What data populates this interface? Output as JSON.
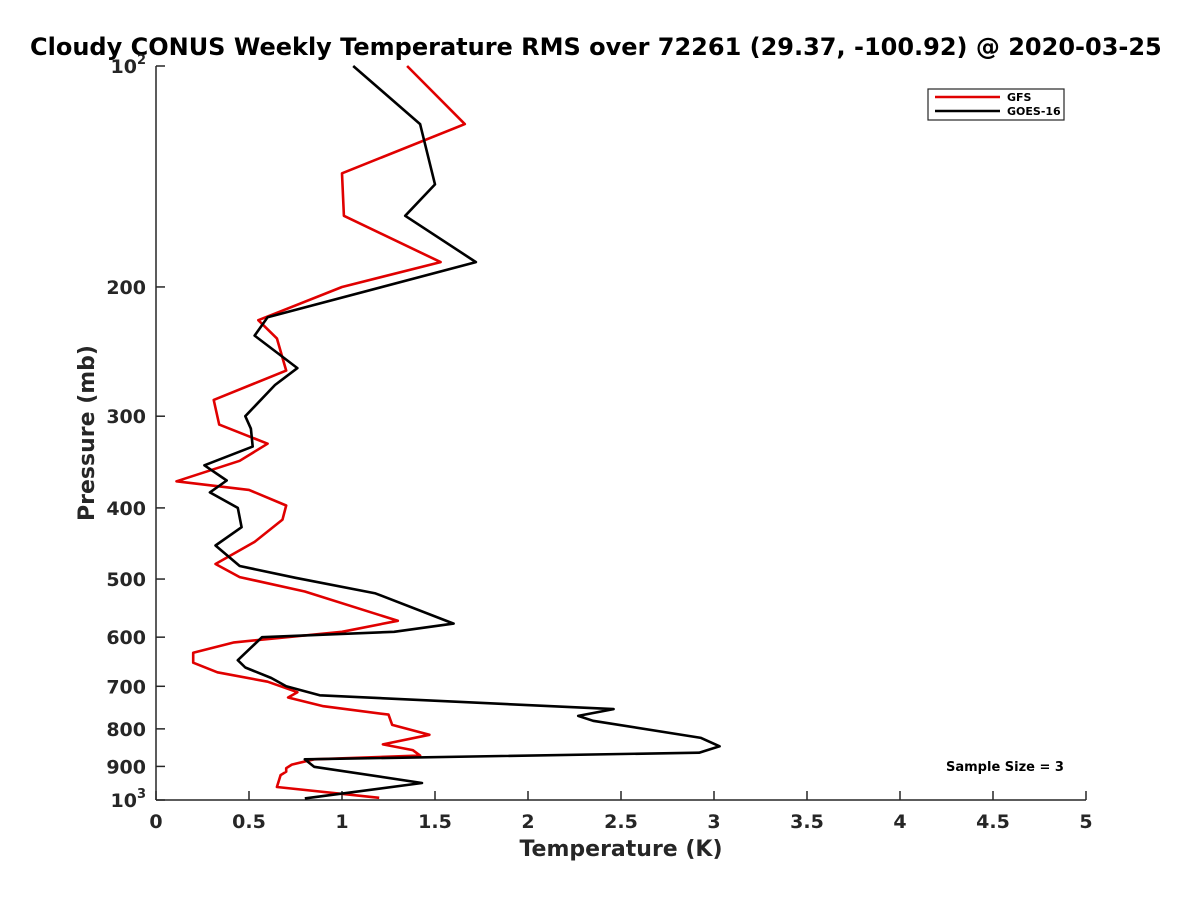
{
  "chart_data": {
    "type": "line",
    "title": "Cloudy CONUS Weekly Temperature RMS over 72261 (29.37, -100.92) @ 2020-03-25",
    "xlabel": "Temperature (K)",
    "ylabel": "Pressure (mb)",
    "xlim": [
      0,
      5
    ],
    "ylim": [
      100,
      1000
    ],
    "y_scale": "log",
    "y_reversed": true,
    "grid": false,
    "legend_position": "top-right",
    "x_ticks": [
      "0",
      "0.5",
      "1",
      "1.5",
      "2",
      "2.5",
      "3",
      "3.5",
      "4",
      "4.5",
      "5"
    ],
    "x_tick_values": [
      0,
      0.5,
      1,
      1.5,
      2,
      2.5,
      3,
      3.5,
      4,
      4.5,
      5
    ],
    "y_ticks": [
      {
        "value": 100,
        "base": "10",
        "exp": "2"
      },
      {
        "value": 200,
        "label": "200"
      },
      {
        "value": 300,
        "label": "300"
      },
      {
        "value": 400,
        "label": "400"
      },
      {
        "value": 500,
        "label": "500"
      },
      {
        "value": 600,
        "label": "600"
      },
      {
        "value": 700,
        "label": "700"
      },
      {
        "value": 800,
        "label": "800"
      },
      {
        "value": 900,
        "label": "900"
      },
      {
        "value": 1000,
        "base": "10",
        "exp": "3"
      }
    ],
    "annotation": "Sample Size = 3",
    "series": [
      {
        "name": "GFS",
        "color": "#e00000",
        "points": [
          [
            1.35,
            100
          ],
          [
            1.66,
            120
          ],
          [
            1.0,
            140
          ],
          [
            1.01,
            160
          ],
          [
            1.53,
            185
          ],
          [
            1.0,
            200
          ],
          [
            0.55,
            222
          ],
          [
            0.65,
            235
          ],
          [
            0.7,
            260
          ],
          [
            0.31,
            285
          ],
          [
            0.34,
            308
          ],
          [
            0.6,
            327
          ],
          [
            0.45,
            345
          ],
          [
            0.11,
            368
          ],
          [
            0.5,
            378
          ],
          [
            0.7,
            397
          ],
          [
            0.68,
            415
          ],
          [
            0.53,
            445
          ],
          [
            0.32,
            477
          ],
          [
            0.45,
            497
          ],
          [
            0.8,
            520
          ],
          [
            1.3,
            570
          ],
          [
            1.0,
            590
          ],
          [
            0.42,
            610
          ],
          [
            0.2,
            630
          ],
          [
            0.2,
            650
          ],
          [
            0.33,
            670
          ],
          [
            0.6,
            690
          ],
          [
            0.76,
            713
          ],
          [
            0.71,
            725
          ],
          [
            0.9,
            745
          ],
          [
            1.25,
            765
          ],
          [
            1.27,
            790
          ],
          [
            1.47,
            815
          ],
          [
            1.22,
            840
          ],
          [
            1.38,
            855
          ],
          [
            1.42,
            870
          ],
          [
            0.85,
            880
          ],
          [
            0.73,
            895
          ],
          [
            0.7,
            905
          ],
          [
            0.7,
            915
          ],
          [
            0.67,
            925
          ],
          [
            0.65,
            960
          ],
          [
            1.2,
            993
          ]
        ]
      },
      {
        "name": "GOES-16",
        "color": "#000000",
        "points": [
          [
            1.06,
            100
          ],
          [
            1.42,
            120
          ],
          [
            1.5,
            145
          ],
          [
            1.34,
            160
          ],
          [
            1.72,
            185
          ],
          [
            0.6,
            220
          ],
          [
            0.53,
            233
          ],
          [
            0.76,
            258
          ],
          [
            0.64,
            272
          ],
          [
            0.48,
            300
          ],
          [
            0.51,
            312
          ],
          [
            0.52,
            330
          ],
          [
            0.26,
            350
          ],
          [
            0.38,
            367
          ],
          [
            0.29,
            381
          ],
          [
            0.44,
            400
          ],
          [
            0.46,
            425
          ],
          [
            0.32,
            450
          ],
          [
            0.45,
            480
          ],
          [
            0.75,
            498
          ],
          [
            1.18,
            523
          ],
          [
            1.6,
            575
          ],
          [
            1.28,
            590
          ],
          [
            0.57,
            600
          ],
          [
            0.44,
            645
          ],
          [
            0.48,
            660
          ],
          [
            0.62,
            682
          ],
          [
            0.7,
            700
          ],
          [
            0.88,
            720
          ],
          [
            2.46,
            752
          ],
          [
            2.27,
            768
          ],
          [
            2.35,
            780
          ],
          [
            2.93,
            823
          ],
          [
            3.03,
            845
          ],
          [
            2.92,
            862
          ],
          [
            0.8,
            880
          ],
          [
            0.85,
            901
          ],
          [
            1.43,
            948
          ],
          [
            0.8,
            995
          ]
        ]
      }
    ]
  }
}
